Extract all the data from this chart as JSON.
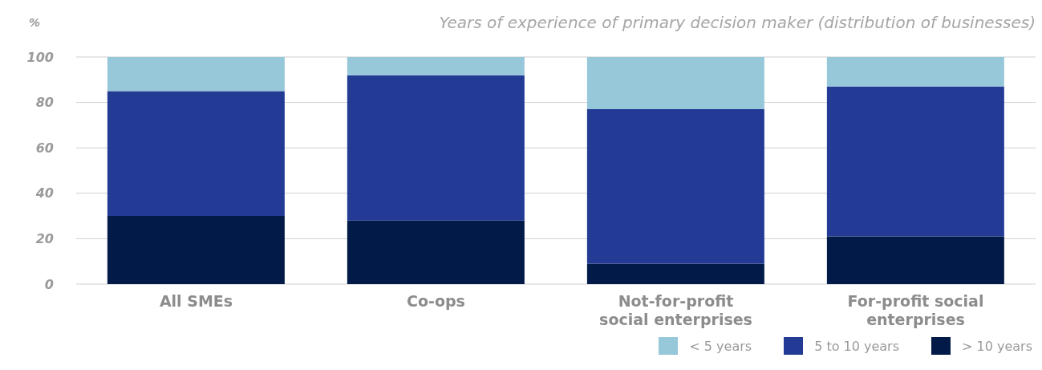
{
  "chart_data": {
    "type": "bar",
    "title": "Years of experience of primary decision maker (distribution of businesses)",
    "ylabel": "%",
    "categories": [
      "All SMEs",
      "Co-ops",
      "Not-for-profit social enterprises",
      "For-profit social enterprises"
    ],
    "stacked": true,
    "series": [
      {
        "name": "> 10 years",
        "color": "#021a48",
        "values": [
          30,
          28,
          9,
          21
        ]
      },
      {
        "name": "5 to 10 years",
        "color": "#243b96",
        "values": [
          55,
          64,
          68,
          66
        ]
      },
      {
        "name": "< 5 years",
        "color": "#97c8da",
        "values": [
          15,
          8,
          23,
          13
        ]
      }
    ],
    "ylim": [
      0,
      100
    ],
    "yticks": [
      0,
      20,
      40,
      60,
      80,
      100
    ],
    "grid": "y",
    "legend": "bottom right"
  }
}
